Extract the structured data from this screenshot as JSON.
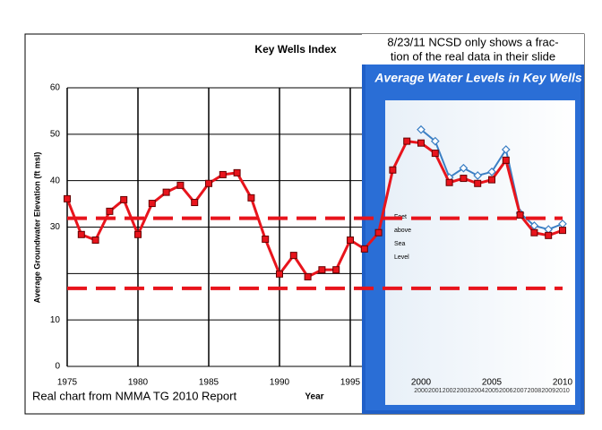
{
  "chart_data": {
    "type": "line",
    "title": "Key Wells Index",
    "x_label": "Year",
    "y_label": "Average Groundwater Elevation (ft msl)",
    "x": [
      1975,
      1976,
      1977,
      1978,
      1979,
      1980,
      1981,
      1982,
      1983,
      1984,
      1985,
      1986,
      1987,
      1988,
      1989,
      1990,
      1991,
      1992,
      1993,
      1994,
      1995,
      1996,
      1997,
      1998,
      1999,
      2000,
      2001,
      2002,
      2003,
      2004,
      2005,
      2006,
      2007,
      2008,
      2009,
      2010
    ],
    "series": [
      {
        "color": "#e8141c",
        "values": [
          36.1,
          28.4,
          27.2,
          33.4,
          35.9,
          28.4,
          35.1,
          37.5,
          39,
          35.3,
          39.4,
          41.3,
          41.7,
          36.3,
          27.4,
          19.9,
          23.9,
          19.3,
          20.8,
          20.8,
          27.2,
          25.3,
          28.8,
          42.3,
          48.5,
          48.1,
          45.9,
          39.6,
          40.5,
          39.4,
          40.2,
          44.4,
          32.6,
          28.8,
          28.2,
          29.3
        ]
      },
      {
        "color": "#3b7fc4",
        "values": [
          null,
          null,
          null,
          null,
          null,
          null,
          null,
          null,
          null,
          null,
          null,
          null,
          null,
          null,
          null,
          null,
          null,
          null,
          null,
          null,
          null,
          null,
          null,
          null,
          null,
          51,
          48.5,
          40.7,
          42.7,
          41.1,
          41.9,
          46.7,
          33,
          30.3,
          29.5,
          30.7
        ]
      }
    ],
    "xlim": [
      1975,
      2010
    ],
    "xticks": [
      1975,
      1980,
      1985,
      1990,
      1995,
      2000,
      2005,
      2010
    ],
    "ylim": [
      0,
      60
    ],
    "yticks": [
      0,
      10,
      {
        "value": 20,
        "label": null
      },
      30,
      40,
      50,
      60
    ],
    "grid": true,
    "reference_lines": [
      31.9,
      16.8
    ],
    "reference_color": "#e8141c",
    "caption": "Real chart from NMMA TG 2010 Report"
  },
  "overlay": {
    "note": [
      "8/23/11 NCSD only shows a frac-",
      "tion of the real data in their slide"
    ],
    "slide_title": "Average Water Levels in Key Wells",
    "slide_axis_label": [
      "Feet",
      "above",
      "Sea",
      "Level"
    ],
    "slide_x_labels": [
      "2000",
      "2001",
      "2002",
      "2003",
      "2004",
      "2005",
      "2006",
      "2007",
      "2008",
      "2009",
      "2010"
    ]
  }
}
